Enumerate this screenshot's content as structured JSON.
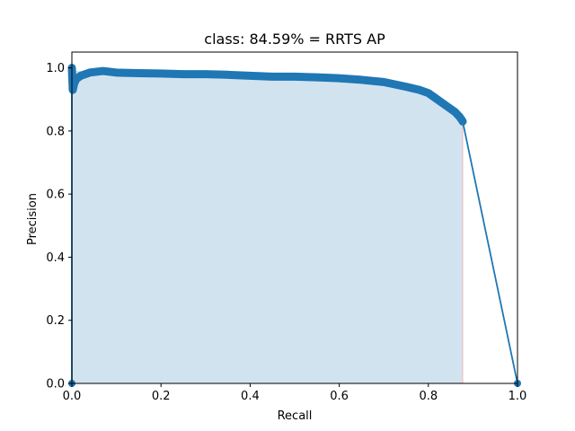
{
  "chart_data": {
    "type": "area",
    "title": "class: 84.59% = RRTS AP",
    "xlabel": "Recall",
    "ylabel": "Precision",
    "xlim": [
      0.0,
      1.0
    ],
    "ylim": [
      0.0,
      1.05
    ],
    "xticks": [
      "0.0",
      "0.2",
      "0.4",
      "0.6",
      "0.8",
      "1.0"
    ],
    "yticks": [
      "0.0",
      "0.2",
      "0.4",
      "0.6",
      "0.8",
      "1.0"
    ],
    "grid": false,
    "colors": {
      "line": "#1f77b4",
      "fill": "#d2e3f0",
      "edge": "#f4b6b6"
    },
    "series": [
      {
        "x": [
          0.0,
          0.0,
          0.002,
          0.005,
          0.01,
          0.02,
          0.04,
          0.07,
          0.1,
          0.15,
          0.2,
          0.25,
          0.3,
          0.35,
          0.4,
          0.45,
          0.5,
          0.55,
          0.6,
          0.65,
          0.7,
          0.75,
          0.78,
          0.8,
          0.82,
          0.84,
          0.86,
          0.87,
          0.875,
          0.877,
          1.0
        ],
        "y": [
          0.0,
          1.0,
          0.93,
          0.95,
          0.965,
          0.975,
          0.985,
          0.99,
          0.985,
          0.983,
          0.982,
          0.98,
          0.98,
          0.978,
          0.975,
          0.972,
          0.972,
          0.97,
          0.967,
          0.962,
          0.955,
          0.94,
          0.93,
          0.92,
          0.9,
          0.88,
          0.86,
          0.845,
          0.835,
          0.83,
          0.0
        ]
      }
    ],
    "ap_area": {
      "x": [
        0.0,
        0.07,
        0.2,
        0.4,
        0.55,
        0.65,
        0.75,
        0.8,
        0.84,
        0.87,
        0.877
      ],
      "y": [
        0.99,
        0.99,
        0.982,
        0.975,
        0.97,
        0.962,
        0.94,
        0.92,
        0.88,
        0.845,
        0.83
      ]
    }
  }
}
